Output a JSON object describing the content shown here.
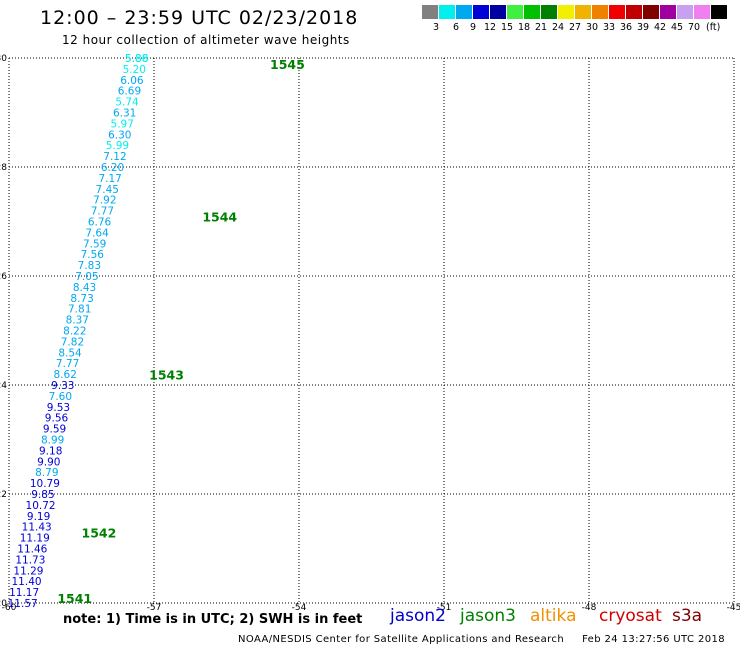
{
  "header": {
    "title": "12:00 – 23:59 UTC 02/23/2018",
    "subtitle": "12 hour collection of altimeter wave heights"
  },
  "legend": {
    "colors": [
      "#808080",
      "#00f0f0",
      "#00a8f0",
      "#0000d8",
      "#0000a0",
      "#40f040",
      "#00c000",
      "#008000",
      "#f0f000",
      "#f0b400",
      "#f08000",
      "#f00000",
      "#c00000",
      "#800000",
      "#a000a0",
      "#c8a0f0",
      "#f080f0",
      "#000000"
    ],
    "labels": [
      "3",
      "6",
      "9",
      "12",
      "15",
      "18",
      "21",
      "24",
      "27",
      "30",
      "33",
      "36",
      "39",
      "42",
      "45",
      "70",
      "(ft)"
    ]
  },
  "chart_data": {
    "type": "scatter",
    "xlim": [
      -60,
      -45
    ],
    "ylim": [
      20,
      30
    ],
    "x_ticks": [
      "-60",
      "-57",
      "-54",
      "-51",
      "-48",
      "-45"
    ],
    "y_ticks": [
      "20",
      "22",
      "24",
      "26",
      "28",
      "30"
    ],
    "grid": true,
    "points": [
      {
        "lon": -59.8,
        "lat": 20.0,
        "v": "11.57"
      },
      {
        "lon": -59.77,
        "lat": 20.2,
        "v": "11.17"
      },
      {
        "lon": -59.72,
        "lat": 20.4,
        "v": "11.40"
      },
      {
        "lon": -59.68,
        "lat": 20.6,
        "v": "11.29"
      },
      {
        "lon": -59.64,
        "lat": 20.8,
        "v": "11.73"
      },
      {
        "lon": -59.6,
        "lat": 21.0,
        "v": "11.46"
      },
      {
        "lon": -59.55,
        "lat": 21.2,
        "v": "11.19"
      },
      {
        "lon": -59.51,
        "lat": 21.4,
        "v": "11.43"
      },
      {
        "lon": -59.47,
        "lat": 21.6,
        "v": "9.19"
      },
      {
        "lon": -59.43,
        "lat": 21.8,
        "v": "10.72"
      },
      {
        "lon": -59.38,
        "lat": 22.0,
        "v": "9.85"
      },
      {
        "lon": -59.34,
        "lat": 22.2,
        "v": "10.79"
      },
      {
        "lon": -59.3,
        "lat": 22.4,
        "v": "8.79"
      },
      {
        "lon": -59.26,
        "lat": 22.6,
        "v": "9.90"
      },
      {
        "lon": -59.22,
        "lat": 22.8,
        "v": "9.18"
      },
      {
        "lon": -59.18,
        "lat": 23.0,
        "v": "8.99"
      },
      {
        "lon": -59.14,
        "lat": 23.2,
        "v": "9.59"
      },
      {
        "lon": -59.1,
        "lat": 23.4,
        "v": "9.56"
      },
      {
        "lon": -59.06,
        "lat": 23.6,
        "v": "9.53"
      },
      {
        "lon": -59.02,
        "lat": 23.8,
        "v": "7.60"
      },
      {
        "lon": -58.97,
        "lat": 24.0,
        "v": "9.33"
      },
      {
        "lon": -58.92,
        "lat": 24.2,
        "v": "8.62"
      },
      {
        "lon": -58.87,
        "lat": 24.4,
        "v": "7.77"
      },
      {
        "lon": -58.82,
        "lat": 24.6,
        "v": "8.54"
      },
      {
        "lon": -58.77,
        "lat": 24.8,
        "v": "7.82"
      },
      {
        "lon": -58.72,
        "lat": 25.0,
        "v": "8.22"
      },
      {
        "lon": -58.67,
        "lat": 25.2,
        "v": "8.37"
      },
      {
        "lon": -58.62,
        "lat": 25.4,
        "v": "7.81"
      },
      {
        "lon": -58.57,
        "lat": 25.6,
        "v": "8.73"
      },
      {
        "lon": -58.52,
        "lat": 25.8,
        "v": "8.43"
      },
      {
        "lon": -58.47,
        "lat": 26.0,
        "v": "7.05"
      },
      {
        "lon": -58.42,
        "lat": 26.2,
        "v": "7.83"
      },
      {
        "lon": -58.36,
        "lat": 26.4,
        "v": "7.56"
      },
      {
        "lon": -58.31,
        "lat": 26.6,
        "v": "7.59"
      },
      {
        "lon": -58.26,
        "lat": 26.8,
        "v": "7.64"
      },
      {
        "lon": -58.21,
        "lat": 27.0,
        "v": "6.76"
      },
      {
        "lon": -58.15,
        "lat": 27.2,
        "v": "7.77"
      },
      {
        "lon": -58.1,
        "lat": 27.4,
        "v": "7.92"
      },
      {
        "lon": -58.05,
        "lat": 27.6,
        "v": "7.45"
      },
      {
        "lon": -57.99,
        "lat": 27.8,
        "v": "7.17"
      },
      {
        "lon": -57.94,
        "lat": 28.0,
        "v": "6.20"
      },
      {
        "lon": -57.89,
        "lat": 28.2,
        "v": "7.12"
      },
      {
        "lon": -57.84,
        "lat": 28.4,
        "v": "5.99"
      },
      {
        "lon": -57.79,
        "lat": 28.6,
        "v": "6.30"
      },
      {
        "lon": -57.74,
        "lat": 28.8,
        "v": "5.97"
      },
      {
        "lon": -57.69,
        "lat": 29.0,
        "v": "6.31"
      },
      {
        "lon": -57.64,
        "lat": 29.2,
        "v": "5.74"
      },
      {
        "lon": -57.59,
        "lat": 29.4,
        "v": "6.69"
      },
      {
        "lon": -57.54,
        "lat": 29.6,
        "v": "6.06"
      },
      {
        "lon": -57.49,
        "lat": 29.8,
        "v": "5.20"
      },
      {
        "lon": -57.44,
        "lat": 30.0,
        "v": "5.86"
      },
      {
        "lon": -57.44,
        "lat": 30.0,
        "v": "5.88"
      }
    ],
    "pass_labels": [
      {
        "lon": -59.0,
        "lat": 20.0,
        "text": "1541"
      },
      {
        "lon": -58.5,
        "lat": 21.2,
        "text": "1542"
      },
      {
        "lon": -57.1,
        "lat": 24.1,
        "text": "1543"
      },
      {
        "lon": -56.0,
        "lat": 27.0,
        "text": "1544"
      },
      {
        "lon": -54.6,
        "lat": 29.8,
        "text": "1545"
      }
    ]
  },
  "footer": {
    "note": "note: 1) Time is in UTC; 2) SWH is in feet",
    "satellites": [
      {
        "name": "jason2",
        "color": "#0000d0"
      },
      {
        "name": "jason3",
        "color": "#008000"
      },
      {
        "name": "altika",
        "color": "#f09000"
      },
      {
        "name": "cryosat",
        "color": "#d00000"
      },
      {
        "name": "s3a",
        "color": "#800000"
      }
    ],
    "credit": "NOAA/NESDIS Center for Satellite Applications and Research",
    "timestamp": "Feb 24 13:27:56 UTC 2018"
  }
}
